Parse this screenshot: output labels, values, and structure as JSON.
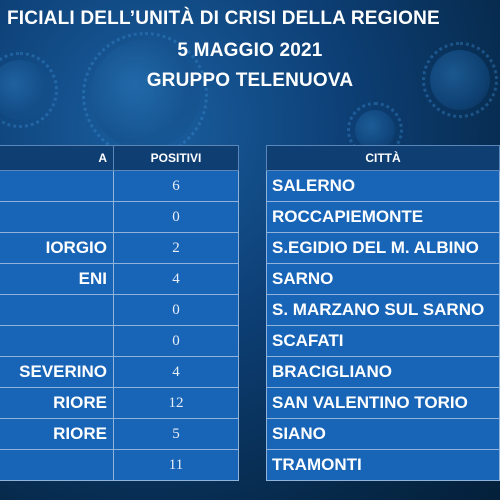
{
  "header": {
    "line1": "FICIALI DELL’UNITÀ DI CRISI DELLA REGIONE",
    "line2": "5 MAGGIO 2021",
    "line3": "GRUPPO TELENUOVA"
  },
  "left_table": {
    "columns": [
      "A",
      "POSITIVI"
    ],
    "rows": [
      {
        "name": "",
        "value": "6"
      },
      {
        "name": "",
        "value": "0"
      },
      {
        "name": "IORGIO",
        "value": "2"
      },
      {
        "name": "ENI",
        "value": "4"
      },
      {
        "name": "",
        "value": "0"
      },
      {
        "name": "",
        "value": "0"
      },
      {
        "name": "SEVERINO",
        "value": "4"
      },
      {
        "name": "RIORE",
        "value": "12"
      },
      {
        "name": "RIORE",
        "value": "5"
      },
      {
        "name": "",
        "value": "11"
      }
    ]
  },
  "right_table": {
    "column": "CITTÀ",
    "rows": [
      "SALERNO",
      "ROCCAPIEMONTE",
      "S.EGIDIO DEL M. ALBINO",
      "SARNO",
      "S. MARZANO SUL SARNO",
      "SCAFATI",
      "BRACIGLIANO",
      "SAN VALENTINO TORIO",
      "SIANO",
      "TRAMONTI"
    ]
  },
  "colors": {
    "background": "#0d3f75",
    "header_row": "#0f3e73",
    "cell": "#1865b8",
    "text": "#ffffff"
  }
}
